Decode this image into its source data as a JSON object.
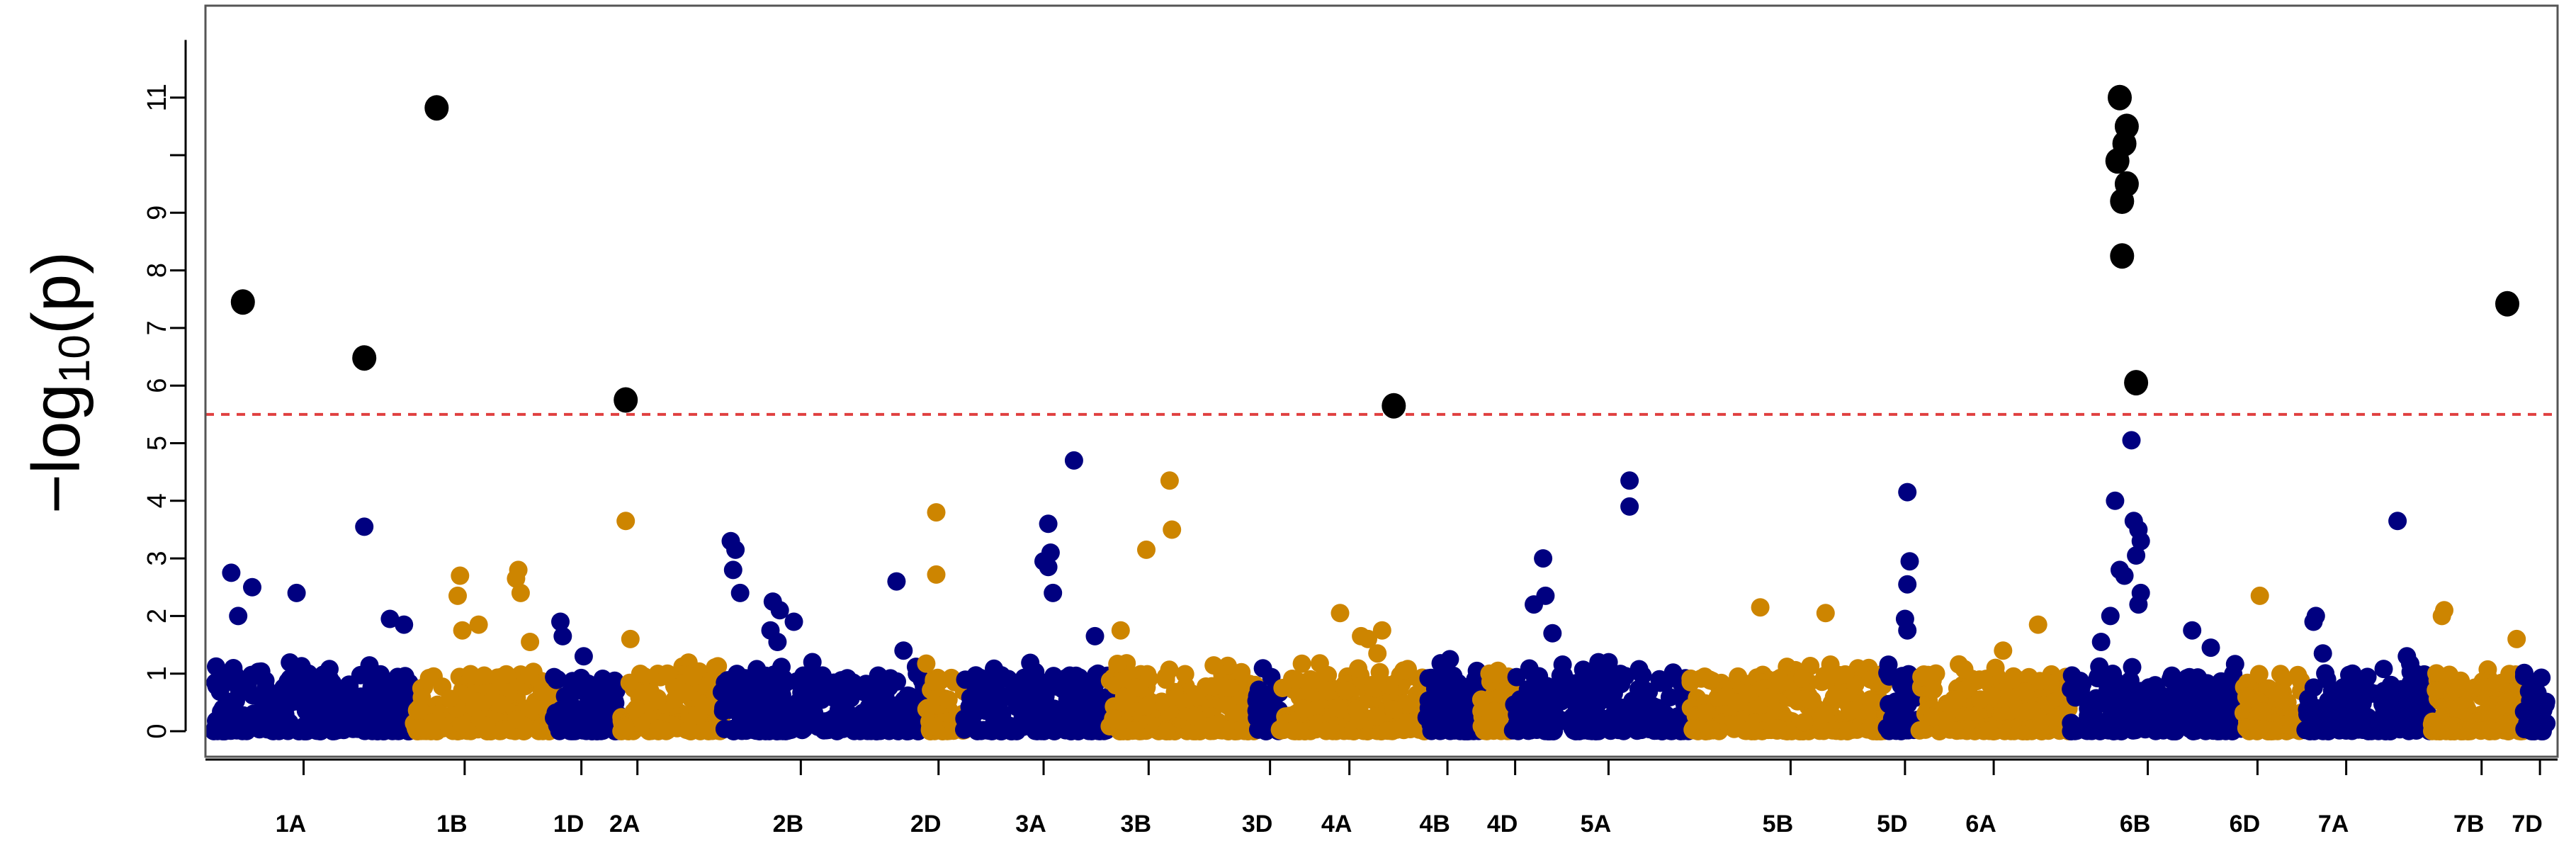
{
  "chart_data": {
    "type": "scatter",
    "subtype": "manhattan",
    "title": "",
    "xlabel": "",
    "ylabel": "−log10(p)",
    "ylabel_parts": {
      "prefix": "−log",
      "subscript": "10",
      "suffix": "(p)"
    },
    "ylim": [
      0,
      12
    ],
    "yticks": [
      0,
      1,
      2,
      3,
      4,
      5,
      6,
      7,
      8,
      9,
      10,
      11
    ],
    "ytick_labels": [
      "0",
      "1",
      "2",
      "3",
      "4",
      "5",
      "6",
      "7",
      "8",
      "9",
      "",
      "11"
    ],
    "threshold": 5.5,
    "x_unit": "genome-wide cumulative position (0-100, relative)",
    "xlim": [
      0,
      100
    ],
    "colors": {
      "blue": "#000080",
      "gold": "#CD8500",
      "significant": "#000000",
      "threshold": "#E04040",
      "axis": "#000000"
    },
    "chromosomes": [
      {
        "name": "1A",
        "start": 0.0,
        "end": 8.6,
        "color": "blue"
      },
      {
        "name": "1B",
        "start": 8.6,
        "end": 14.6,
        "color": "gold"
      },
      {
        "name": "1D",
        "start": 14.6,
        "end": 17.5,
        "color": "blue"
      },
      {
        "name": "2A",
        "start": 17.5,
        "end": 21.8,
        "color": "gold"
      },
      {
        "name": "2B",
        "start": 21.8,
        "end": 30.5,
        "color": "blue"
      },
      {
        "name": "2D",
        "start": 30.5,
        "end": 32.2,
        "color": "gold"
      },
      {
        "name": "3A",
        "start": 32.2,
        "end": 38.4,
        "color": "blue"
      },
      {
        "name": "3B",
        "start": 38.4,
        "end": 44.7,
        "color": "gold"
      },
      {
        "name": "3D",
        "start": 44.7,
        "end": 45.7,
        "color": "blue"
      },
      {
        "name": "4A",
        "start": 45.7,
        "end": 52.0,
        "color": "gold"
      },
      {
        "name": "4B",
        "start": 52.0,
        "end": 54.3,
        "color": "blue"
      },
      {
        "name": "4D",
        "start": 54.3,
        "end": 55.7,
        "color": "gold"
      },
      {
        "name": "5A",
        "start": 55.7,
        "end": 63.3,
        "color": "blue"
      },
      {
        "name": "5B",
        "start": 63.3,
        "end": 71.7,
        "color": "gold"
      },
      {
        "name": "5D",
        "start": 71.7,
        "end": 73.1,
        "color": "blue"
      },
      {
        "name": "6A",
        "start": 73.1,
        "end": 79.6,
        "color": "gold"
      },
      {
        "name": "6B",
        "start": 79.6,
        "end": 87.0,
        "color": "blue"
      },
      {
        "name": "6D",
        "start": 87.0,
        "end": 89.6,
        "color": "gold"
      },
      {
        "name": "7A",
        "start": 89.6,
        "end": 95.0,
        "color": "blue"
      },
      {
        "name": "7B",
        "start": 95.0,
        "end": 99.0,
        "color": "gold"
      },
      {
        "name": "7D",
        "start": 99.0,
        "end": 100.0,
        "color": "blue"
      }
    ],
    "xtick_positions": [
      3.9,
      10.8,
      15.8,
      18.2,
      25.2,
      31.1,
      35.6,
      40.1,
      45.3,
      48.7,
      52.9,
      55.8,
      59.8,
      67.6,
      72.5,
      76.3,
      82.9,
      87.6,
      91.4,
      97.2,
      99.7
    ],
    "xtick_labels": [
      "1A",
      "1B",
      "1D",
      "2A",
      "2B",
      "2D",
      "3A",
      "3B",
      "3D",
      "4A",
      "4B",
      "4D",
      "5A",
      "5B",
      "5D",
      "6A",
      "6B",
      "6D",
      "7A",
      "7B",
      "7D"
    ],
    "background_noise_seed": 20240517,
    "background_points_per_unit": 32,
    "significant_points": [
      {
        "chrom": "1A",
        "x": 1.3,
        "y": 7.45
      },
      {
        "chrom": "1A",
        "x": 6.5,
        "y": 6.48
      },
      {
        "chrom": "1B",
        "x": 9.6,
        "y": 10.82
      },
      {
        "chrom": "2A",
        "x": 17.7,
        "y": 5.75
      },
      {
        "chrom": "4A",
        "x": 50.6,
        "y": 5.65
      },
      {
        "chrom": "6B",
        "x": 81.7,
        "y": 11.0
      },
      {
        "chrom": "6B",
        "x": 82.0,
        "y": 10.5
      },
      {
        "chrom": "6B",
        "x": 81.9,
        "y": 10.2
      },
      {
        "chrom": "6B",
        "x": 81.6,
        "y": 9.9
      },
      {
        "chrom": "6B",
        "x": 82.0,
        "y": 9.5
      },
      {
        "chrom": "6B",
        "x": 81.8,
        "y": 9.2
      },
      {
        "chrom": "6B",
        "x": 81.8,
        "y": 8.25
      },
      {
        "chrom": "6B",
        "x": 82.4,
        "y": 6.05
      },
      {
        "chrom": "7B",
        "x": 98.3,
        "y": 7.42
      }
    ],
    "notable_points": [
      {
        "x": 0.8,
        "y": 2.75
      },
      {
        "x": 1.1,
        "y": 2.0
      },
      {
        "x": 1.7,
        "y": 2.5
      },
      {
        "x": 3.6,
        "y": 2.4
      },
      {
        "x": 6.5,
        "y": 3.55
      },
      {
        "x": 7.6,
        "y": 1.95
      },
      {
        "x": 8.2,
        "y": 1.85
      },
      {
        "x": 10.6,
        "y": 2.7
      },
      {
        "x": 10.5,
        "y": 2.35
      },
      {
        "x": 10.7,
        "y": 1.75
      },
      {
        "x": 11.4,
        "y": 1.85
      },
      {
        "x": 13.1,
        "y": 2.8
      },
      {
        "x": 13.0,
        "y": 2.65
      },
      {
        "x": 13.2,
        "y": 2.4
      },
      {
        "x": 13.6,
        "y": 1.55
      },
      {
        "x": 14.9,
        "y": 1.9
      },
      {
        "x": 15.0,
        "y": 1.65
      },
      {
        "x": 15.9,
        "y": 1.3
      },
      {
        "x": 17.7,
        "y": 3.65
      },
      {
        "x": 17.9,
        "y": 1.6
      },
      {
        "x": 22.2,
        "y": 3.3
      },
      {
        "x": 22.4,
        "y": 3.15
      },
      {
        "x": 22.3,
        "y": 2.8
      },
      {
        "x": 22.6,
        "y": 2.4
      },
      {
        "x": 24.0,
        "y": 2.25
      },
      {
        "x": 24.3,
        "y": 2.1
      },
      {
        "x": 23.9,
        "y": 1.75
      },
      {
        "x": 24.2,
        "y": 1.55
      },
      {
        "x": 24.9,
        "y": 1.9
      },
      {
        "x": 29.3,
        "y": 2.6
      },
      {
        "x": 29.6,
        "y": 1.4
      },
      {
        "x": 31.0,
        "y": 3.8
      },
      {
        "x": 31.0,
        "y": 2.72
      },
      {
        "x": 35.8,
        "y": 3.6
      },
      {
        "x": 35.9,
        "y": 3.1
      },
      {
        "x": 35.6,
        "y": 2.95
      },
      {
        "x": 35.8,
        "y": 2.85
      },
      {
        "x": 36.0,
        "y": 2.4
      },
      {
        "x": 36.9,
        "y": 4.7
      },
      {
        "x": 37.8,
        "y": 1.65
      },
      {
        "x": 38.9,
        "y": 1.75
      },
      {
        "x": 40.0,
        "y": 3.15
      },
      {
        "x": 41.0,
        "y": 4.35
      },
      {
        "x": 41.1,
        "y": 3.5
      },
      {
        "x": 48.3,
        "y": 2.05
      },
      {
        "x": 49.2,
        "y": 1.65
      },
      {
        "x": 49.5,
        "y": 1.6
      },
      {
        "x": 50.1,
        "y": 1.75
      },
      {
        "x": 49.9,
        "y": 1.35
      },
      {
        "x": 53.0,
        "y": 1.25
      },
      {
        "x": 54.7,
        "y": 1.0
      },
      {
        "x": 57.0,
        "y": 3.0
      },
      {
        "x": 57.1,
        "y": 2.35
      },
      {
        "x": 56.6,
        "y": 2.2
      },
      {
        "x": 57.4,
        "y": 1.7
      },
      {
        "x": 60.7,
        "y": 4.35
      },
      {
        "x": 60.7,
        "y": 3.9
      },
      {
        "x": 66.3,
        "y": 2.15
      },
      {
        "x": 69.1,
        "y": 2.05
      },
      {
        "x": 72.6,
        "y": 4.15
      },
      {
        "x": 72.7,
        "y": 2.95
      },
      {
        "x": 72.6,
        "y": 2.55
      },
      {
        "x": 72.5,
        "y": 1.95
      },
      {
        "x": 72.6,
        "y": 1.75
      },
      {
        "x": 76.7,
        "y": 1.4
      },
      {
        "x": 78.2,
        "y": 1.85
      },
      {
        "x": 81.5,
        "y": 4.0
      },
      {
        "x": 82.2,
        "y": 5.05
      },
      {
        "x": 82.3,
        "y": 3.65
      },
      {
        "x": 82.5,
        "y": 3.5
      },
      {
        "x": 82.6,
        "y": 3.3
      },
      {
        "x": 82.4,
        "y": 3.05
      },
      {
        "x": 81.7,
        "y": 2.8
      },
      {
        "x": 81.9,
        "y": 2.7
      },
      {
        "x": 82.6,
        "y": 2.4
      },
      {
        "x": 82.5,
        "y": 2.2
      },
      {
        "x": 81.3,
        "y": 2.0
      },
      {
        "x": 80.9,
        "y": 1.55
      },
      {
        "x": 84.8,
        "y": 1.75
      },
      {
        "x": 85.6,
        "y": 1.45
      },
      {
        "x": 87.7,
        "y": 2.35
      },
      {
        "x": 90.1,
        "y": 2.0
      },
      {
        "x": 90.0,
        "y": 1.9
      },
      {
        "x": 90.4,
        "y": 1.35
      },
      {
        "x": 93.6,
        "y": 3.65
      },
      {
        "x": 94.0,
        "y": 1.3
      },
      {
        "x": 95.6,
        "y": 2.1
      },
      {
        "x": 95.5,
        "y": 2.0
      },
      {
        "x": 98.7,
        "y": 1.6
      }
    ]
  }
}
